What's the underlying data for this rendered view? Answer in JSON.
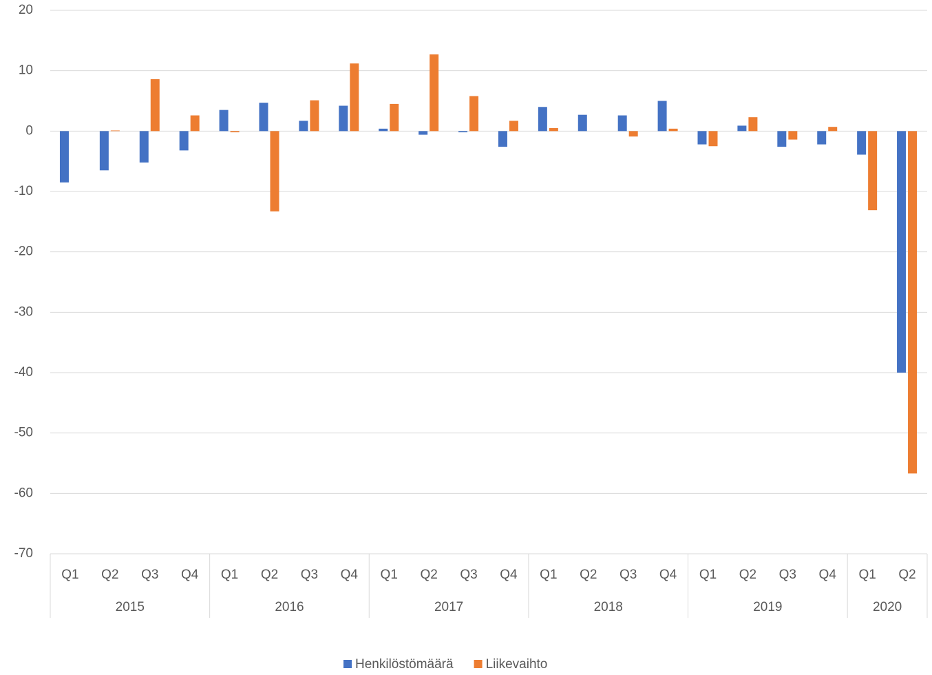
{
  "chart_data": {
    "type": "bar",
    "categories": [
      "Q1",
      "Q2",
      "Q3",
      "Q4",
      "Q1",
      "Q2",
      "Q3",
      "Q4",
      "Q1",
      "Q2",
      "Q3",
      "Q4",
      "Q1",
      "Q2",
      "Q3",
      "Q4",
      "Q1",
      "Q2",
      "Q3",
      "Q4",
      "Q1",
      "Q2"
    ],
    "group_labels": [
      "2015",
      null,
      null,
      null,
      "2016",
      null,
      null,
      null,
      "2017",
      null,
      null,
      null,
      "2018",
      null,
      null,
      null,
      "2019",
      null,
      null,
      null,
      "2020",
      null
    ],
    "series": [
      {
        "name": "Henkilöstömäärä",
        "color": "#4472c4",
        "values": [
          -8.5,
          -6.5,
          -5.2,
          -3.2,
          3.5,
          4.7,
          1.7,
          4.2,
          0.4,
          -0.6,
          -0.2,
          -2.6,
          4.0,
          2.7,
          2.6,
          5.0,
          -2.2,
          0.9,
          -2.6,
          -2.2,
          -3.9,
          -40
        ]
      },
      {
        "name": "Liikevaihto",
        "color": "#ed7d31",
        "values": [
          0,
          0.1,
          8.6,
          2.6,
          -0.2,
          -13.3,
          5.1,
          11.2,
          4.5,
          12.7,
          5.8,
          1.7,
          0.5,
          0,
          -0.9,
          0.4,
          -2.5,
          2.3,
          -1.4,
          0.7,
          -13.1,
          -56.7
        ]
      }
    ],
    "ylim": [
      -70,
      20
    ],
    "yticks": [
      20,
      10,
      0,
      -10,
      -20,
      -30,
      -40,
      -50,
      -60,
      -70
    ],
    "grid": true,
    "legend": "bottom"
  }
}
